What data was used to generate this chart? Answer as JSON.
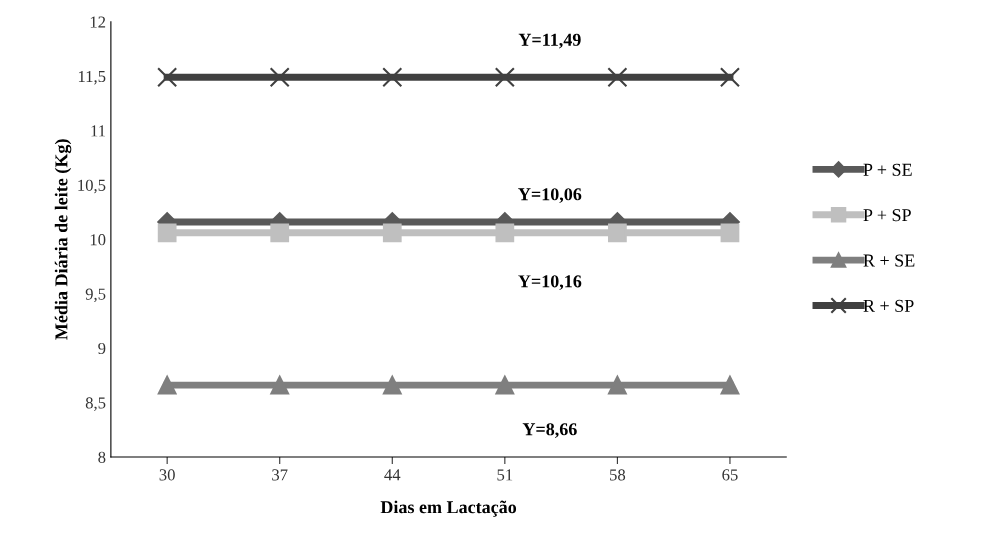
{
  "chart_data": {
    "type": "line",
    "xlabel": "Dias em Lactação",
    "ylabel": "Média Diária de leite (Kg)",
    "categories": [
      "30",
      "37",
      "44",
      "51",
      "58",
      "65"
    ],
    "series": [
      {
        "name": "P + SE",
        "color": "#595959",
        "marker": "diamond",
        "values": [
          10.16,
          10.16,
          10.16,
          10.16,
          10.16,
          10.16
        ]
      },
      {
        "name": "P + SP",
        "color": "#bfbfbf",
        "marker": "square",
        "values": [
          10.06,
          10.06,
          10.06,
          10.06,
          10.06,
          10.06
        ]
      },
      {
        "name": "R + SE",
        "color": "#7f7f7f",
        "marker": "triangle",
        "values": [
          8.66,
          8.66,
          8.66,
          8.66,
          8.66,
          8.66
        ]
      },
      {
        "name": "R + SP",
        "color": "#404040",
        "marker": "cross",
        "values": [
          11.49,
          11.49,
          11.49,
          11.49,
          11.49,
          11.49
        ]
      }
    ],
    "ylim": [
      8,
      12
    ],
    "yticks": [
      8,
      {
        "value": 8.5,
        "label": "8,5"
      },
      9,
      {
        "value": 9.5,
        "label": "9,5"
      },
      10,
      {
        "value": 10.5,
        "label": "10,5"
      },
      11,
      {
        "value": 11.5,
        "label": "11,5"
      },
      12
    ],
    "annotations": [
      "Y=11,49",
      "Y=10,06",
      "Y=10,16",
      "Y=8,66"
    ],
    "legend": "right",
    "grid": false
  }
}
